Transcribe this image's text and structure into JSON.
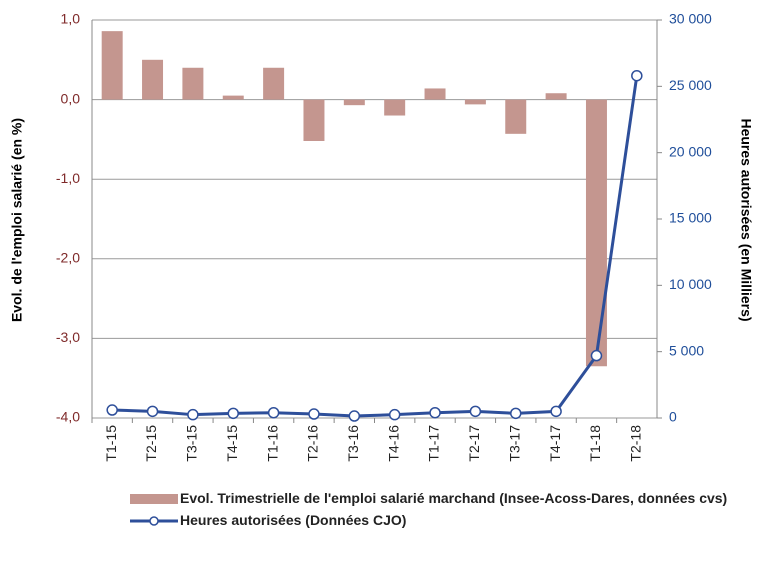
{
  "chart_data": {
    "type": "bar-line",
    "categories": [
      "T1-15",
      "T2-15",
      "T3-15",
      "T4-15",
      "T1-16",
      "T2-16",
      "T3-16",
      "T4-16",
      "T1-17",
      "T2-17",
      "T3-17",
      "T4-17",
      "T1-18",
      "T2-18"
    ],
    "series": [
      {
        "name": "Evol. Trimestrielle de l'emploi salarié marchand (Insee-Acoss-Dares, données cvs)",
        "color": "#c4968f",
        "type": "bar",
        "values": [
          0.86,
          0.5,
          0.4,
          0.05,
          0.4,
          -0.52,
          -0.07,
          -0.2,
          0.14,
          -0.06,
          -0.43,
          0.08,
          -3.35,
          null
        ]
      },
      {
        "name": "Heures autorisées (Données CJO)",
        "color": "#2e4f9a",
        "type": "line",
        "axis": "y2",
        "values": [
          600,
          500,
          250,
          350,
          400,
          300,
          150,
          250,
          400,
          500,
          350,
          500,
          4700,
          25800
        ]
      }
    ],
    "ylabel": "Evol. de l'emploi salarié (en %)",
    "y2label": "Heures autorisées (en Milliers)",
    "ylim": [
      -4,
      1
    ],
    "yticks": [
      {
        "value": 1,
        "label": "1,0"
      },
      {
        "value": 0,
        "label": "0,0"
      },
      {
        "value": -1,
        "label": "-1,0"
      },
      {
        "value": -2,
        "label": "-2,0"
      },
      {
        "value": -3,
        "label": "-3,0"
      },
      {
        "value": -4,
        "label": "-4,0"
      }
    ],
    "y2lim": [
      0,
      30000
    ],
    "y2ticks": [
      0,
      {
        "value": 5000,
        "label": "5 000"
      },
      {
        "value": 10000,
        "label": "10 000"
      },
      {
        "value": 15000,
        "label": "15 000"
      },
      {
        "value": 20000,
        "label": "20 000"
      },
      {
        "value": 25000,
        "label": "25 000"
      },
      {
        "value": 30000,
        "label": "30 000"
      }
    ],
    "grid": true,
    "legend": "bottom"
  }
}
